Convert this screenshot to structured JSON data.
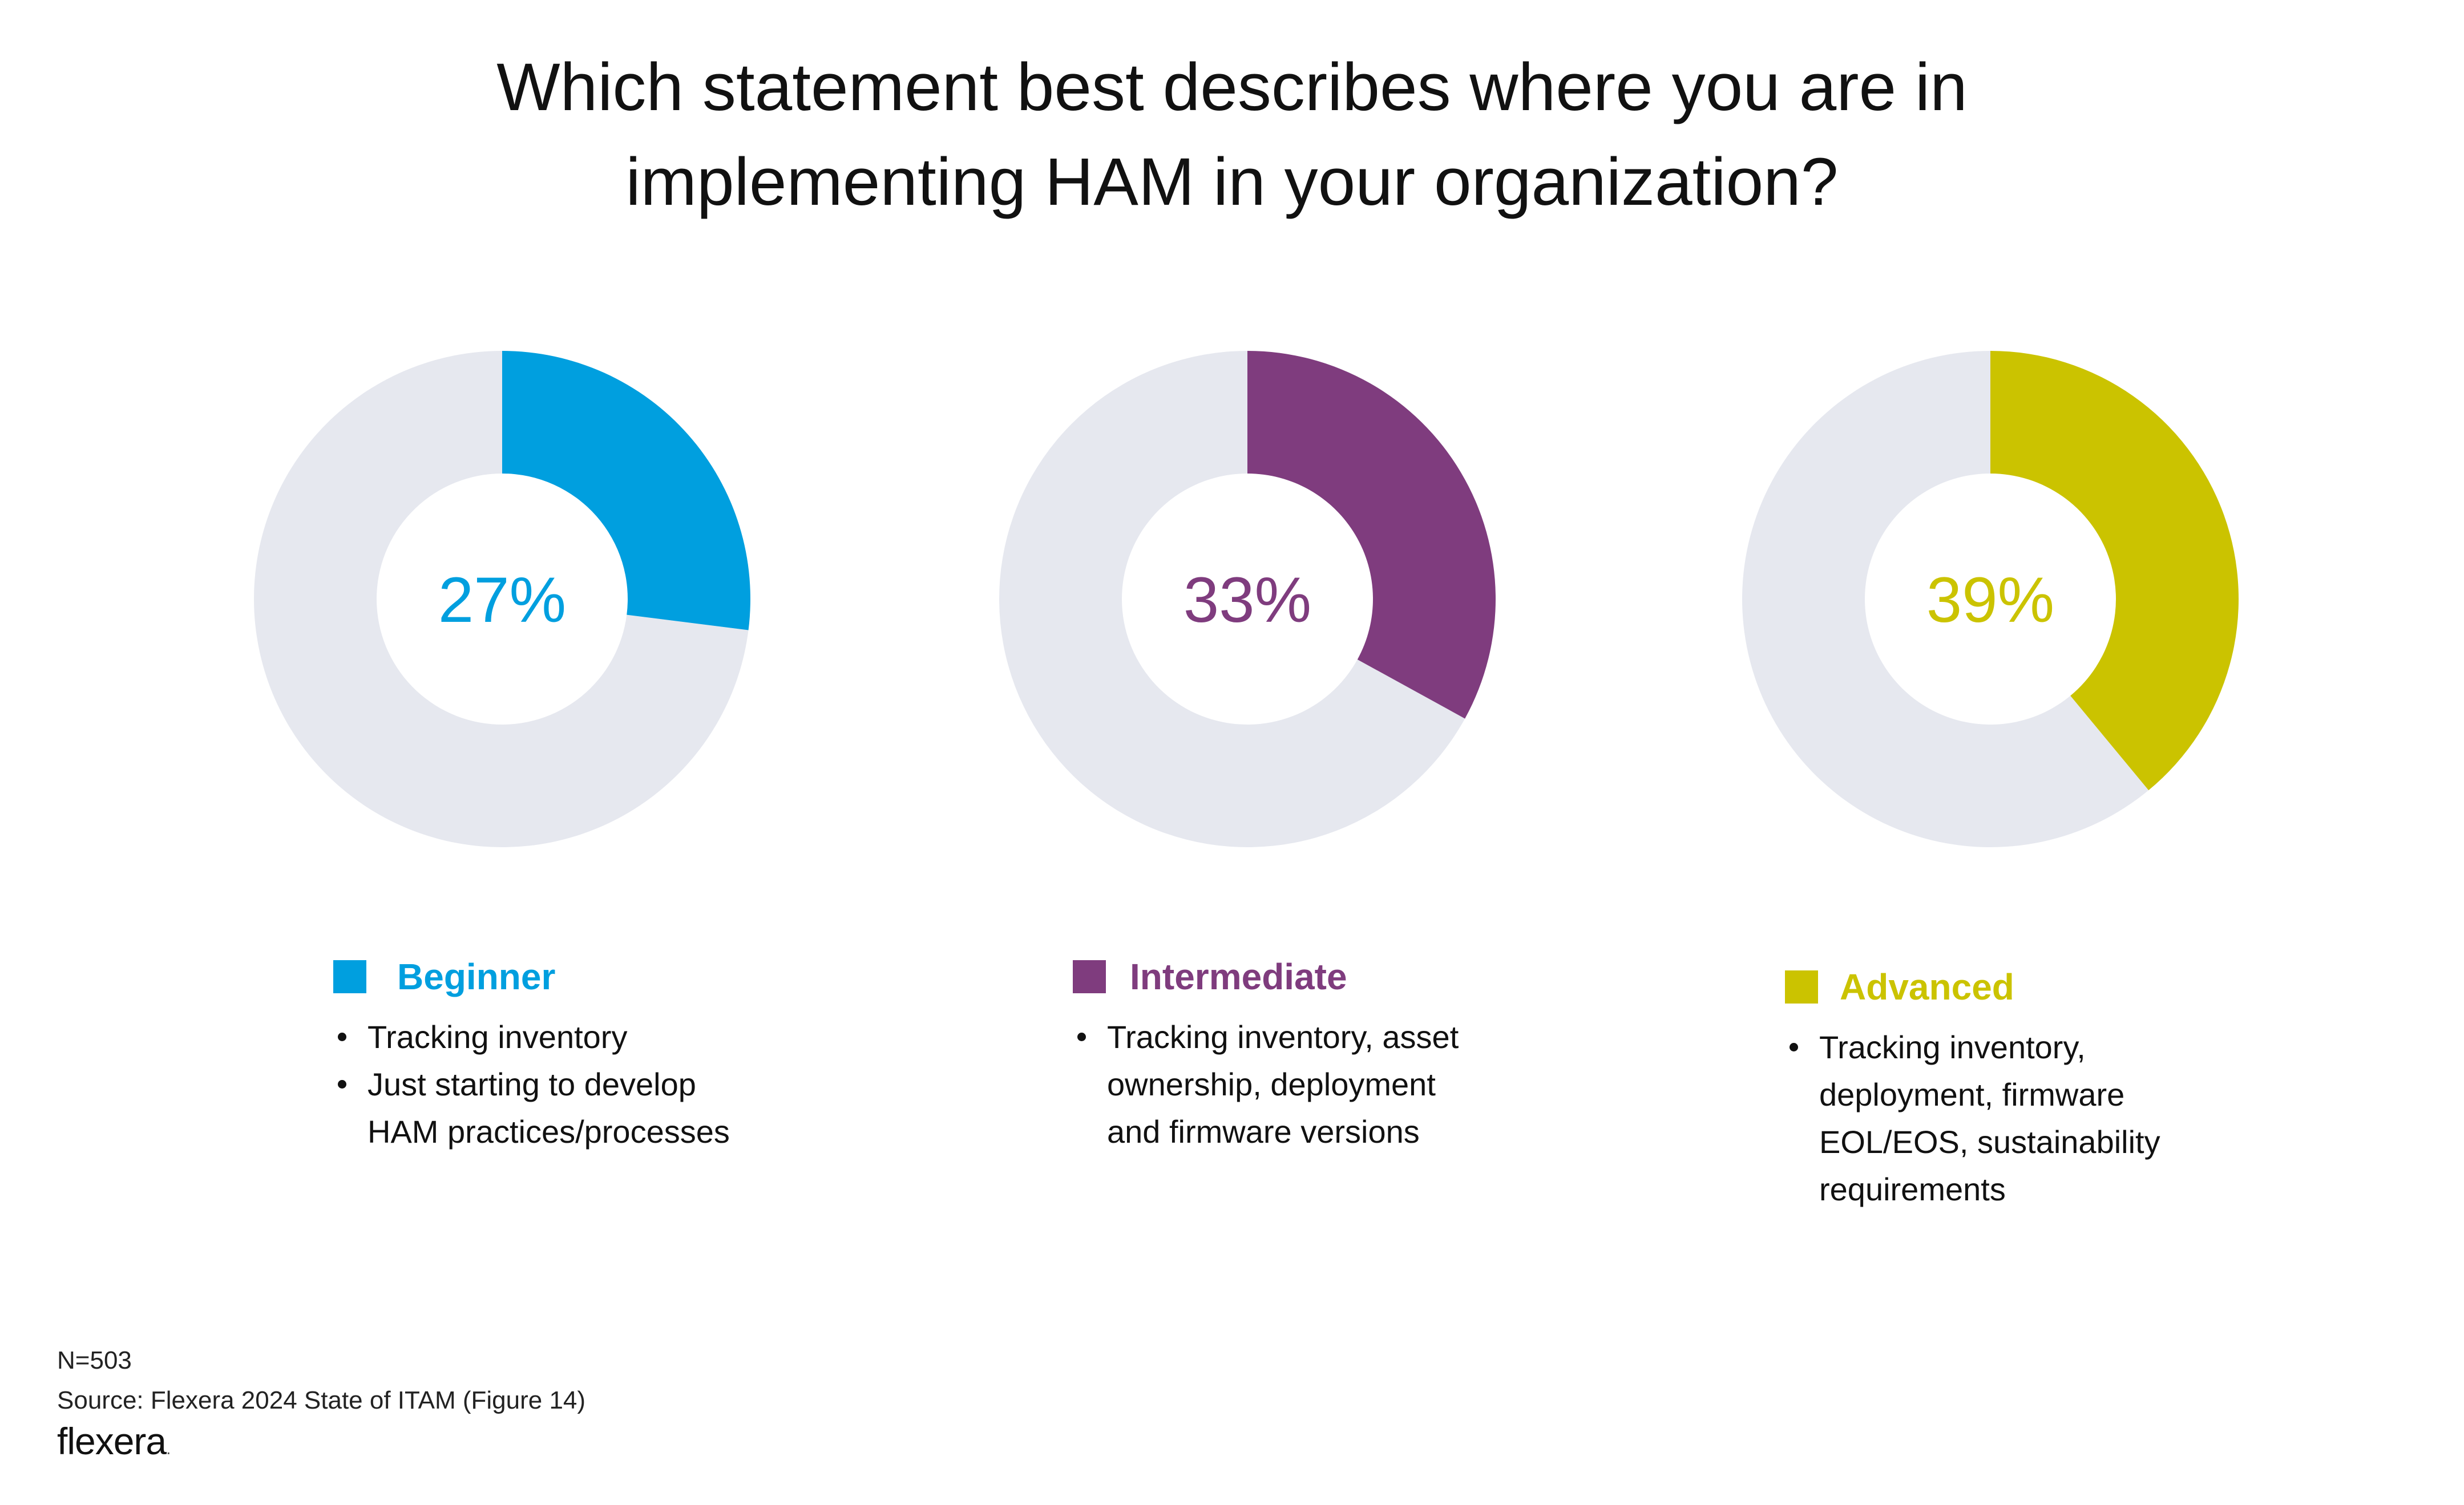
{
  "title": {
    "line1": "Which statement best describes where you are in",
    "line2": "implementing HAM in your organization?"
  },
  "chart_data": {
    "type": "pie",
    "title": "Which statement best describes where you are in implementing HAM in your organization?",
    "charts": [
      {
        "category": "Beginner",
        "value": 27,
        "label": "27%",
        "color": "#009FDF",
        "remainder_color": "#E6E8EF",
        "bullets": [
          "Tracking inventory",
          "Just starting to develop HAM practices/processes"
        ],
        "bullet_lines": [
          [
            "Tracking inventory"
          ],
          [
            "Just starting to develop",
            "HAM practices/processes"
          ]
        ]
      },
      {
        "category": "Intermediate",
        "value": 33,
        "label": "33%",
        "color": "#7F3C7E",
        "remainder_color": "#E6E8EF",
        "bullets": [
          "Tracking inventory, asset ownership, deployment and firmware versions"
        ],
        "bullet_lines": [
          [
            "Tracking inventory, asset",
            "ownership, deployment",
            "and firmware versions"
          ]
        ]
      },
      {
        "category": "Advanced",
        "value": 39,
        "label": "39%",
        "color": "#CBC300",
        "remainder_color": "#E6E8EF",
        "bullets": [
          "Tracking inventory, deployment, firmware EOL/EOS, sustainability requirements"
        ],
        "bullet_lines": [
          [
            "Tracking inventory,",
            "deployment, firmware",
            "EOL/EOS, sustainability",
            "requirements"
          ]
        ]
      }
    ]
  },
  "footnote": {
    "n": "N=503",
    "source": "Source: Flexera 2024 State of ITAM (Figure 14)"
  },
  "brand": {
    "logo_text": "flexera",
    "logo_dot": "."
  }
}
